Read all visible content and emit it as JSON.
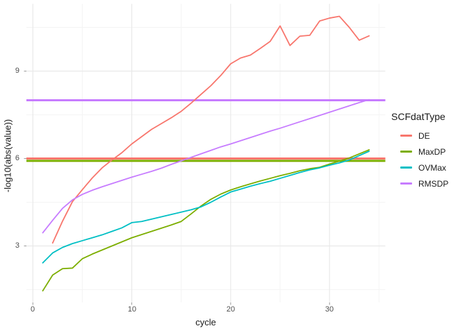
{
  "chart_data": {
    "type": "line",
    "title": "",
    "xlabel": "cycle",
    "ylabel": "-log10(abs(value))",
    "legend_title": "SCFdatType",
    "legend_position": "right",
    "grid": "major+minor",
    "x_ticks": [
      0,
      10,
      20,
      30
    ],
    "x_tick_labels": [
      "0",
      "10",
      "20",
      "30"
    ],
    "x_minor_ticks": [
      5,
      15,
      25,
      35
    ],
    "y_ticks": [
      3,
      6,
      9
    ],
    "y_tick_labels": [
      "3",
      "6",
      "9"
    ],
    "y_minor_ticks": [
      1.5,
      4.5,
      7.5,
      10.5
    ],
    "xlim": [
      -0.65,
      35.65
    ],
    "ylim": [
      1.0,
      11.3
    ],
    "colors": {
      "DE": "#F8766D",
      "MaxDP": "#7CAE00",
      "OVMax": "#00BFC4",
      "RMSDP": "#C77CFF",
      "major_grid": "#E9E9E9",
      "minor_grid": "#F4F4F4",
      "tick": "#9A9A9A",
      "axis_text": "#4D4D4D",
      "axis_title": "#1A1A1A"
    },
    "hlines": [
      {
        "series": "DE",
        "y": 6.0
      },
      {
        "series": "MaxDP",
        "y": 5.92
      },
      {
        "series": "RMSDP",
        "y": 8.0
      }
    ],
    "series": [
      {
        "name": "DE",
        "x": [
          2,
          3,
          4,
          5,
          6,
          7,
          8,
          9,
          10,
          11,
          12,
          13,
          14,
          15,
          16,
          17,
          18,
          19,
          20,
          21,
          22,
          23,
          24,
          25,
          26,
          27,
          28,
          29,
          30,
          31,
          32,
          33,
          34
        ],
        "y": [
          3.1,
          3.85,
          4.52,
          4.93,
          5.33,
          5.68,
          5.95,
          6.2,
          6.5,
          6.75,
          7.0,
          7.2,
          7.4,
          7.62,
          7.9,
          8.2,
          8.5,
          8.85,
          9.25,
          9.45,
          9.55,
          9.78,
          10.02,
          10.55,
          9.88,
          10.2,
          10.23,
          10.72,
          10.82,
          10.88,
          10.5,
          10.06,
          10.21
        ]
      },
      {
        "name": "MaxDP",
        "x": [
          1,
          2,
          3,
          4,
          5,
          6,
          7,
          8,
          9,
          10,
          11,
          12,
          13,
          14,
          15,
          16,
          17,
          18,
          19,
          20,
          21,
          22,
          23,
          24,
          25,
          26,
          27,
          28,
          29,
          30,
          31,
          32,
          33,
          34
        ],
        "y": [
          1.46,
          2.0,
          2.22,
          2.24,
          2.56,
          2.72,
          2.86,
          3.0,
          3.14,
          3.28,
          3.39,
          3.5,
          3.61,
          3.72,
          3.84,
          4.1,
          4.37,
          4.6,
          4.78,
          4.92,
          5.03,
          5.13,
          5.23,
          5.32,
          5.41,
          5.49,
          5.58,
          5.65,
          5.7,
          5.81,
          5.91,
          6.02,
          6.16,
          6.3
        ]
      },
      {
        "name": "OVMax",
        "x": [
          1,
          2,
          3,
          4,
          5,
          6,
          7,
          8,
          9,
          10,
          11,
          12,
          13,
          14,
          15,
          16,
          17,
          18,
          19,
          20,
          21,
          22,
          23,
          24,
          25,
          26,
          27,
          28,
          29,
          30,
          31,
          32,
          33,
          34
        ],
        "y": [
          2.42,
          2.76,
          2.95,
          3.08,
          3.18,
          3.28,
          3.38,
          3.5,
          3.62,
          3.8,
          3.84,
          3.92,
          4.0,
          4.08,
          4.16,
          4.24,
          4.34,
          4.5,
          4.68,
          4.85,
          4.95,
          5.05,
          5.14,
          5.22,
          5.32,
          5.42,
          5.52,
          5.61,
          5.68,
          5.77,
          5.85,
          5.95,
          6.1,
          6.25
        ]
      },
      {
        "name": "RMSDP",
        "x": [
          1,
          2,
          3,
          4,
          5,
          6,
          7,
          8,
          9,
          10,
          11,
          12,
          13,
          14,
          15,
          16,
          17,
          18,
          19,
          20,
          21,
          22,
          23,
          24,
          25,
          26,
          27,
          28,
          29,
          30,
          31,
          32,
          33,
          34
        ],
        "y": [
          3.45,
          3.88,
          4.29,
          4.58,
          4.77,
          4.91,
          5.03,
          5.14,
          5.25,
          5.36,
          5.46,
          5.56,
          5.67,
          5.8,
          5.92,
          6.04,
          6.16,
          6.28,
          6.4,
          6.5,
          6.61,
          6.72,
          6.83,
          6.94,
          7.04,
          7.15,
          7.26,
          7.37,
          7.48,
          7.59,
          7.7,
          7.81,
          7.92,
          8.02
        ]
      }
    ]
  }
}
